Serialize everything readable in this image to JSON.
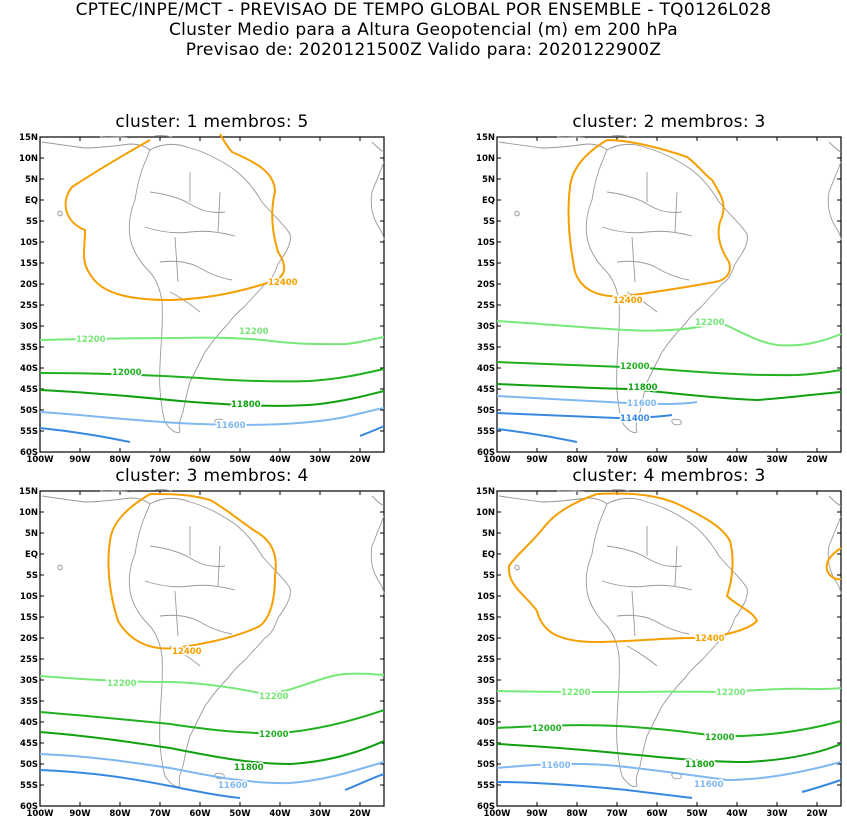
{
  "header": {
    "line1": "CPTEC/INPE/MCT - PREVISAO DE TEMPO GLOBAL POR ENSEMBLE - TQ0126L028",
    "line2": "Cluster Medio para a Altura Geopotencial (m) em 200 hPa",
    "line3": "Previsao de: 2020121500Z   Valido para: 2020122900Z"
  },
  "axes": {
    "lon_labels": [
      "100W",
      "90W",
      "80W",
      "70W",
      "60W",
      "50W",
      "40W",
      "30W",
      "20W"
    ],
    "lat_labels": [
      "15N",
      "10N",
      "5N",
      "EQ",
      "5S",
      "10S",
      "15S",
      "20S",
      "25S",
      "30S",
      "35S",
      "40S",
      "45S",
      "50S",
      "55S",
      "60S"
    ]
  },
  "colors": {
    "c12400": "#f5a000",
    "c12200": "#78e878",
    "c12000": "#20b020",
    "c11800": "#10a010",
    "c11600": "#80b8f0",
    "c11400": "#3888e0",
    "coast": "#999999"
  },
  "clusters": [
    {
      "title": "cluster: 1   membros: 5",
      "labels": {
        "l12400": "12400",
        "l12200a": "12200",
        "l12200b": "12200",
        "l12000": "12000",
        "l11800": "11800",
        "l11600": "11600"
      }
    },
    {
      "title": "cluster: 2   membros: 3",
      "labels": {
        "l12400": "12400",
        "l12200": "12200",
        "l12000": "12000",
        "l11800": "11800",
        "l11600": "11600",
        "l11400": "11400"
      }
    },
    {
      "title": "cluster: 3   membros: 4",
      "labels": {
        "l12400": "12400",
        "l12200a": "12200",
        "l12200b": "12200",
        "l12000": "12000",
        "l11800": "11800",
        "l11600": "11600"
      }
    },
    {
      "title": "cluster: 4   membros: 3",
      "labels": {
        "l12400": "12400",
        "l12200a": "12200",
        "l12200b": "12200",
        "l12000a": "12000",
        "l12000b": "12000",
        "l11800": "11800",
        "l11600a": "11600",
        "l11600b": "11600"
      }
    }
  ]
}
